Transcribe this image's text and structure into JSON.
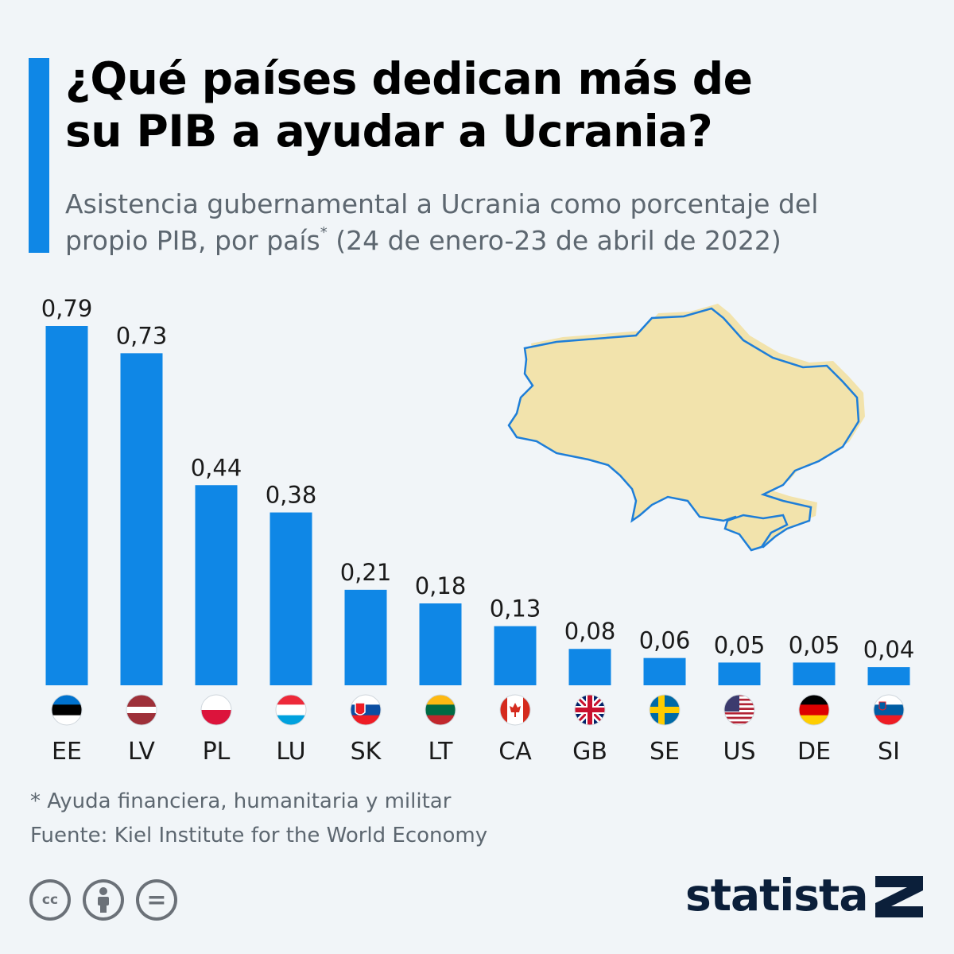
{
  "header": {
    "title_line1": "¿Qué países dedican más de",
    "title_line2": "su PIB a ayudar a Ucrania?",
    "subtitle_line1": "Asistencia gubernamental a Ucrania como porcentaje del",
    "subtitle_line2_a": "propio PIB, por país",
    "subtitle_line2_mark": "*",
    "subtitle_line2_b": " (24 de enero-23 de abril de 2022)"
  },
  "chart_data": {
    "type": "bar",
    "categories": [
      "EE",
      "LV",
      "PL",
      "LU",
      "SK",
      "LT",
      "CA",
      "GB",
      "SE",
      "US",
      "DE",
      "SI"
    ],
    "values": [
      0.79,
      0.73,
      0.44,
      0.38,
      0.21,
      0.18,
      0.13,
      0.08,
      0.06,
      0.05,
      0.05,
      0.04
    ],
    "value_labels": [
      "0,79",
      "0,73",
      "0,44",
      "0,38",
      "0,21",
      "0,18",
      "0,13",
      "0,08",
      "0,06",
      "0,05",
      "0,05",
      "0,04"
    ],
    "ylim": [
      0,
      0.79
    ],
    "grid": false,
    "bar_color": "#0f87e6"
  },
  "map": {
    "icon": "ukraine-map",
    "fill": "#f2e3ac",
    "stroke": "#1e7ed8"
  },
  "footer": {
    "note": "* Ayuda financiera, humanitaria y militar",
    "source": "Fuente: Kiel Institute for the World Economy",
    "cc_label": "cc",
    "equals_label": "="
  },
  "brand": {
    "name": "statista",
    "color": "#0b1f3a"
  }
}
